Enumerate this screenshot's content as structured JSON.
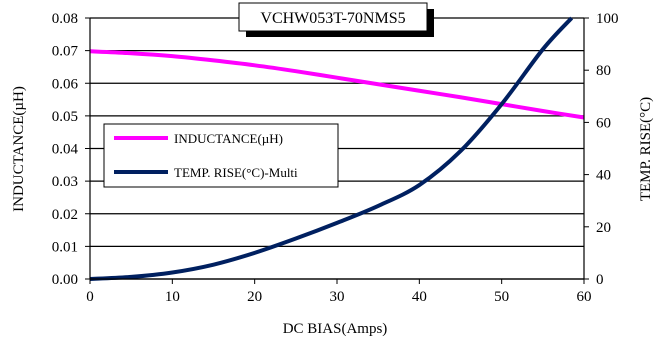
{
  "chart_data": {
    "type": "line",
    "title": "VCHW053T-70NMS5",
    "xlabel": "DC BIAS(Amps)",
    "ylabel": "INDUCTANCE(µH)",
    "y2label": "TEMP. RISE(°C)",
    "xlim": [
      0,
      60
    ],
    "ylim": [
      0,
      0.08
    ],
    "y2lim": [
      0,
      100
    ],
    "x_ticks": [
      "0",
      "10",
      "20",
      "30",
      "40",
      "50",
      "60"
    ],
    "y_ticks": [
      "0.00",
      "0.01",
      "0.02",
      "0.03",
      "0.04",
      "0.05",
      "0.06",
      "0.07",
      "0.08"
    ],
    "y2_ticks": [
      "0",
      "20",
      "40",
      "60",
      "80",
      "100"
    ],
    "grid": "horizontal",
    "legend_position": "middle-left",
    "series": [
      {
        "name": "INDUCTANCE(µH)",
        "axis": "left",
        "color": "#ff00ff",
        "x": [
          0,
          5,
          10,
          15,
          20,
          25,
          30,
          35,
          40,
          45,
          50,
          55,
          60
        ],
        "y": [
          0.0698,
          0.0692,
          0.0683,
          0.067,
          0.0655,
          0.0637,
          0.0617,
          0.0597,
          0.0577,
          0.0557,
          0.0536,
          0.0515,
          0.0495
        ]
      },
      {
        "name": "TEMP. RISE(°C)-Multi",
        "axis": "right",
        "color": "#002060",
        "x": [
          0,
          5,
          10,
          15,
          20,
          25,
          30,
          35,
          40,
          45,
          50,
          55,
          58.5
        ],
        "y": [
          0,
          0.8,
          2.5,
          5.5,
          10,
          15.5,
          21.5,
          28,
          36,
          49,
          67,
          88,
          100
        ]
      }
    ]
  }
}
